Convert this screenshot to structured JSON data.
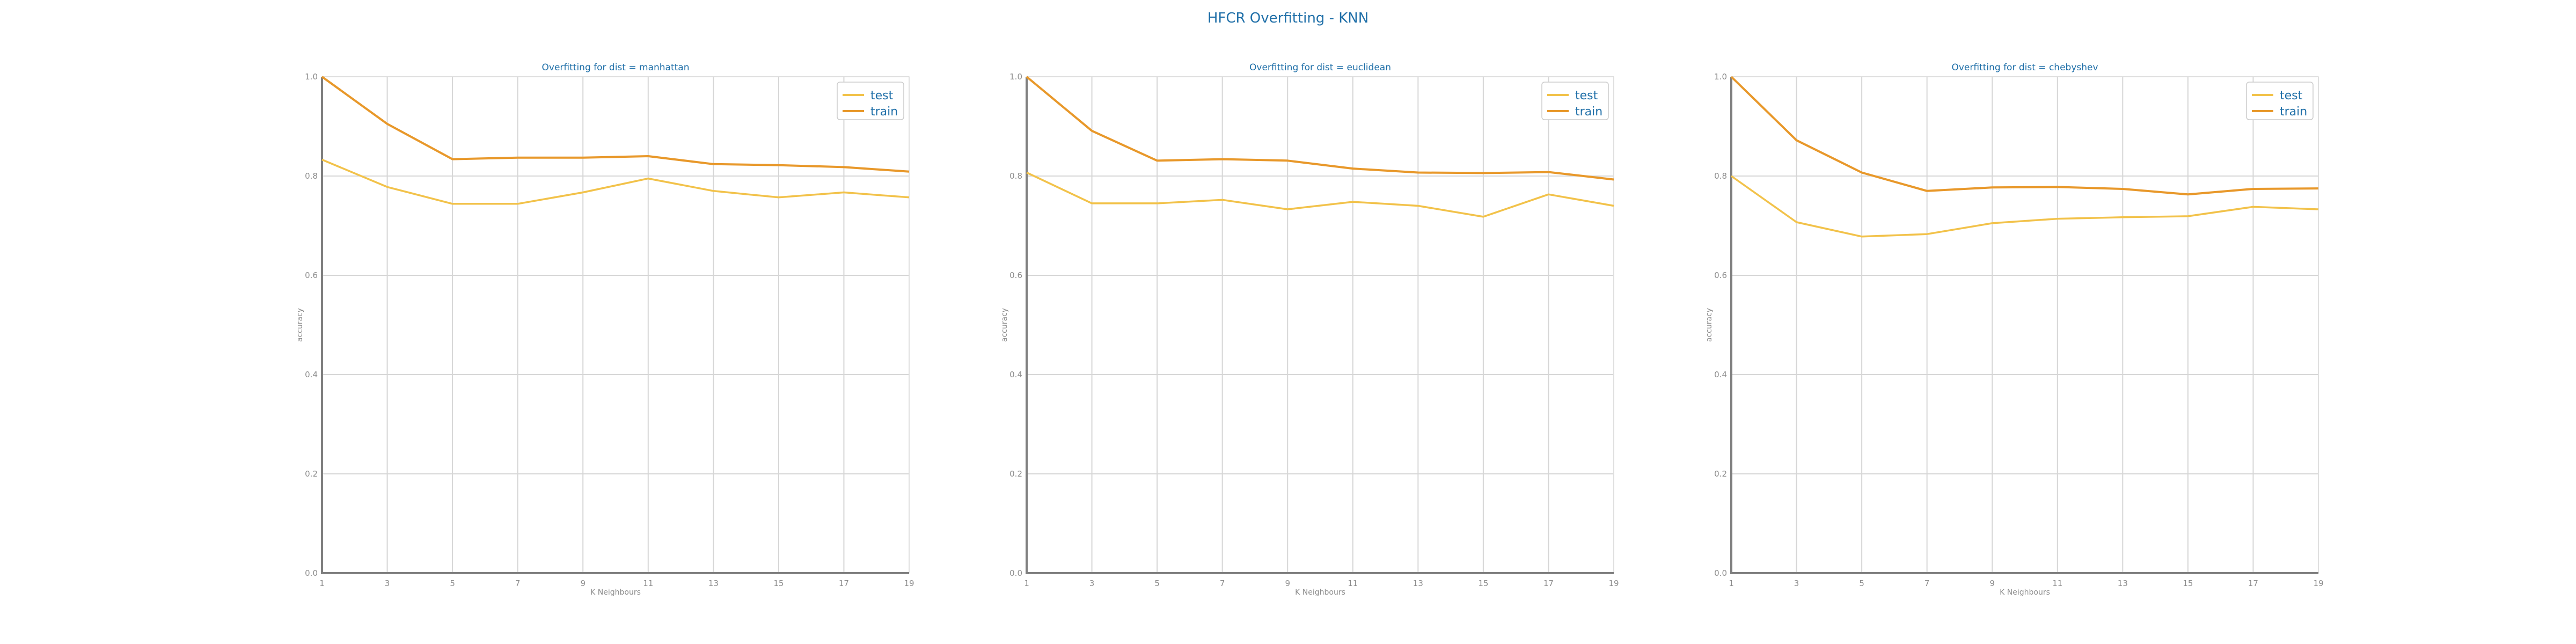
{
  "suptitle": "HFCR Overfitting - KNN",
  "colors": {
    "test": "#f2c24a",
    "train": "#e8982a",
    "title": "#1f6fa8"
  },
  "chart_data": [
    {
      "type": "line",
      "title": "Overfitting for dist = manhattan",
      "xlabel": "K Neighbours",
      "ylabel": "accuracy",
      "x": [
        1,
        3,
        5,
        7,
        9,
        11,
        13,
        15,
        17,
        19
      ],
      "xticks": [
        "1",
        "3",
        "5",
        "7",
        "9",
        "11",
        "13",
        "15",
        "17",
        "19"
      ],
      "yticks": [
        "0.0",
        "0.2",
        "0.4",
        "0.6",
        "0.8",
        "1.0"
      ],
      "ylim": [
        0,
        1
      ],
      "grid": true,
      "legend": "top-right",
      "series": [
        {
          "name": "test",
          "color": "#f2c24a",
          "values": [
            0.833,
            0.778,
            0.744,
            0.744,
            0.767,
            0.795,
            0.77,
            0.757,
            0.767,
            0.757
          ]
        },
        {
          "name": "train",
          "color": "#e8982a",
          "values": [
            1.0,
            0.905,
            0.834,
            0.837,
            0.837,
            0.84,
            0.824,
            0.822,
            0.818,
            0.809
          ]
        }
      ]
    },
    {
      "type": "line",
      "title": "Overfitting for dist = euclidean",
      "xlabel": "K Neighbours",
      "ylabel": "accuracy",
      "x": [
        1,
        3,
        5,
        7,
        9,
        11,
        13,
        15,
        17,
        19
      ],
      "xticks": [
        "1",
        "3",
        "5",
        "7",
        "9",
        "11",
        "13",
        "15",
        "17",
        "19"
      ],
      "yticks": [
        "0.0",
        "0.2",
        "0.4",
        "0.6",
        "0.8",
        "1.0"
      ],
      "ylim": [
        0,
        1
      ],
      "grid": true,
      "legend": "top-right",
      "series": [
        {
          "name": "test",
          "color": "#f2c24a",
          "values": [
            0.807,
            0.745,
            0.745,
            0.752,
            0.733,
            0.748,
            0.74,
            0.718,
            0.763,
            0.74
          ]
        },
        {
          "name": "train",
          "color": "#e8982a",
          "values": [
            1.0,
            0.891,
            0.831,
            0.834,
            0.831,
            0.815,
            0.807,
            0.806,
            0.808,
            0.793
          ]
        }
      ]
    },
    {
      "type": "line",
      "title": "Overfitting for dist = chebyshev",
      "xlabel": "K Neighbours",
      "ylabel": "accuracy",
      "x": [
        1,
        3,
        5,
        7,
        9,
        11,
        13,
        15,
        17,
        19
      ],
      "xticks": [
        "1",
        "3",
        "5",
        "7",
        "9",
        "11",
        "13",
        "15",
        "17",
        "19"
      ],
      "yticks": [
        "0.0",
        "0.2",
        "0.4",
        "0.6",
        "0.8",
        "1.0"
      ],
      "ylim": [
        0,
        1
      ],
      "grid": true,
      "legend": "top-right",
      "series": [
        {
          "name": "test",
          "color": "#f2c24a",
          "values": [
            0.8,
            0.707,
            0.678,
            0.683,
            0.705,
            0.714,
            0.717,
            0.719,
            0.738,
            0.733
          ]
        },
        {
          "name": "train",
          "color": "#e8982a",
          "values": [
            1.0,
            0.872,
            0.807,
            0.77,
            0.777,
            0.778,
            0.774,
            0.763,
            0.774,
            0.775
          ]
        }
      ]
    }
  ]
}
